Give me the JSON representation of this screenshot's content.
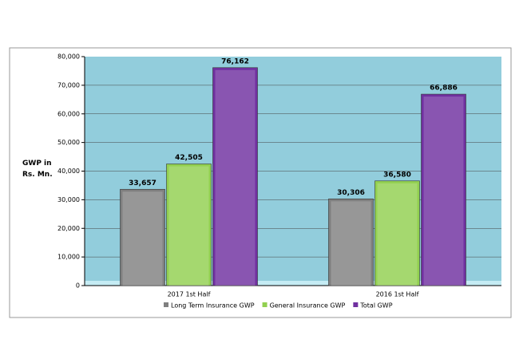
{
  "chart_data": {
    "type": "bar",
    "ylabel": "GWP in Rs. Mn.",
    "categories": [
      "2017   1st Half",
      "2016   1st Half"
    ],
    "series": [
      {
        "name": "Long Term Insurance   GWP",
        "color": "#808080",
        "values": [
          33657,
          30306
        ],
        "value_labels": [
          "33,657",
          "30,306"
        ]
      },
      {
        "name": "General Insurance   GWP",
        "color": "#92d050",
        "values": [
          42505,
          36580
        ],
        "value_labels": [
          "42,505",
          "36,580"
        ]
      },
      {
        "name": "Total  GWP",
        "color": "#7030a0",
        "values": [
          76162,
          66886
        ],
        "value_labels": [
          "76,162",
          "66,886"
        ]
      }
    ],
    "ylim": [
      0,
      80000
    ],
    "yticks": [
      0,
      {
        "value": 10000,
        "label": "10,000"
      },
      {
        "value": 20000,
        "label": "20,000"
      },
      {
        "value": 30000,
        "label": "30,000"
      },
      {
        "value": 40000,
        "label": "40,000"
      },
      {
        "value": 50000,
        "label": "50,000"
      },
      {
        "value": 60000,
        "label": "60,000"
      },
      {
        "value": 70000,
        "label": "70,000"
      },
      {
        "value": 80000,
        "label": "80,000"
      }
    ],
    "grid": true
  }
}
